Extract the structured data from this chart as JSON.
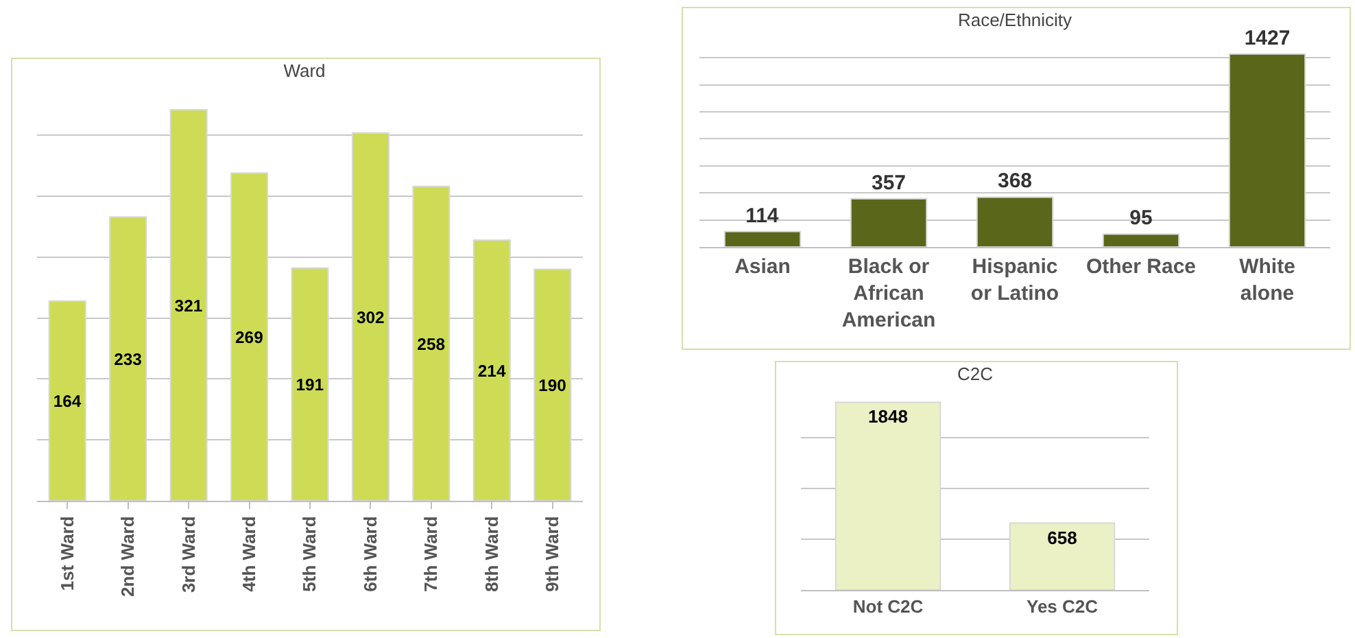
{
  "chart_data": [
    {
      "type": "bar",
      "title": "Ward",
      "categories": [
        "1st Ward",
        "2nd Ward",
        "3rd Ward",
        "4th Ward",
        "5th Ward",
        "6th Ward",
        "7th Ward",
        "8th Ward",
        "9th Ward"
      ],
      "values": [
        164,
        233,
        321,
        269,
        191,
        302,
        258,
        214,
        190
      ],
      "color": "#cddc54",
      "grid": "y",
      "tick_labels": "x",
      "data_labels": true
    },
    {
      "type": "bar",
      "title": "Race/Ethnicity",
      "categories": [
        "Asian",
        "Black or African American",
        "Hispanic or Latino",
        "Other Race",
        "White alone"
      ],
      "values": [
        114,
        357,
        368,
        95,
        1427
      ],
      "color": "#5a6619",
      "grid": "y",
      "tick_labels": "x",
      "data_labels": true
    },
    {
      "type": "bar",
      "title": "C2C",
      "categories": [
        "Not C2C",
        "Yes C2C"
      ],
      "values": [
        1848,
        658
      ],
      "color": "#ebf1c4",
      "grid": "y",
      "tick_labels": "x",
      "data_labels": true
    }
  ]
}
